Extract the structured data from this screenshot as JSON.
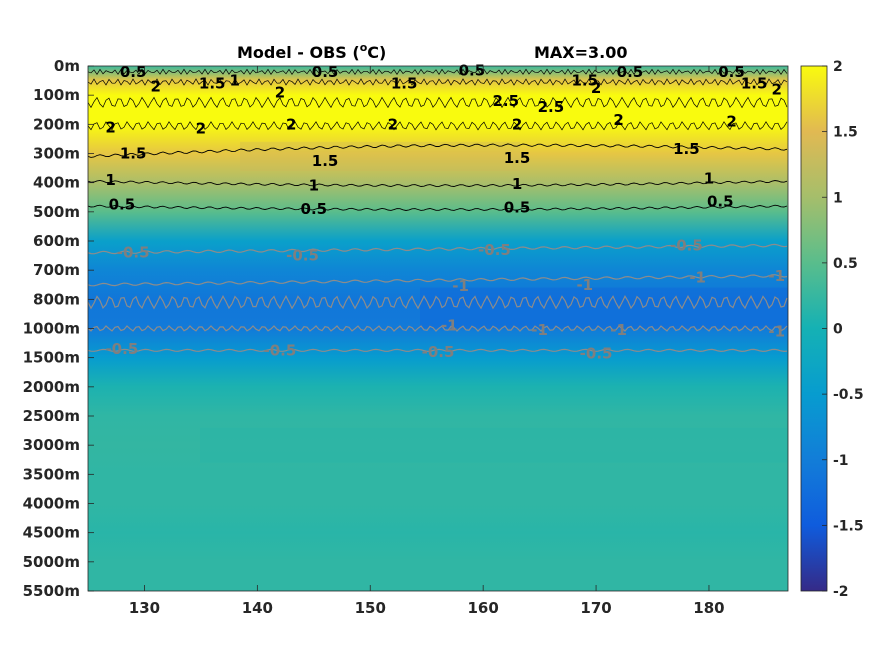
{
  "chart_data": {
    "type": "heatmap",
    "title_left": "Model - OBS (",
    "title_sup": "o",
    "title_unit": "C)",
    "title_right": "MAX=3.00",
    "colormap": "parula",
    "color_limits": [
      -2,
      2
    ],
    "colorbar_ticks": [
      "2",
      "1.5",
      "1",
      "0.5",
      "0",
      "-0.5",
      "-1",
      "-1.5",
      "-2"
    ],
    "x_ticks": [
      "130",
      "140",
      "150",
      "160",
      "170",
      "180"
    ],
    "x_tick_values": [
      130,
      140,
      150,
      160,
      170,
      180
    ],
    "xlim": [
      125,
      187
    ],
    "y_ticks": [
      "0m",
      "100m",
      "200m",
      "300m",
      "400m",
      "500m",
      "600m",
      "700m",
      "800m",
      "1000m",
      "1500m",
      "2000m",
      "2500m",
      "3000m",
      "3500m",
      "4000m",
      "4500m",
      "5000m",
      "5500m"
    ],
    "depth_profile": [
      {
        "depth": "0m",
        "value": 0.3
      },
      {
        "depth": "50m",
        "value": 1.6
      },
      {
        "depth": "100m",
        "value": 2.0
      },
      {
        "depth": "200m",
        "value": 2.0
      },
      {
        "depth": "300m",
        "value": 1.6
      },
      {
        "depth": "400m",
        "value": 1.05
      },
      {
        "depth": "500m",
        "value": 0.5
      },
      {
        "depth": "600m",
        "value": -0.4
      },
      {
        "depth": "700m",
        "value": -0.85
      },
      {
        "depth": "800m",
        "value": -1.1
      },
      {
        "depth": "1000m",
        "value": -1.05
      },
      {
        "depth": "1500m",
        "value": -0.5
      },
      {
        "depth": "2000m",
        "value": 0.05
      },
      {
        "depth": "2500m",
        "value": 0.2
      },
      {
        "depth": "3000m",
        "value": 0.22
      },
      {
        "depth": "3500m",
        "value": 0.2
      },
      {
        "depth": "4000m",
        "value": 0.2
      },
      {
        "depth": "4500m",
        "value": 0.15
      },
      {
        "depth": "5000m",
        "value": 0.2
      },
      {
        "depth": "5500m",
        "value": 0.2
      }
    ],
    "contour_labels": [
      {
        "text": "0.5",
        "x": 129,
        "depth_index": 0.2,
        "color": "#000000"
      },
      {
        "text": "2",
        "x": 131,
        "depth_index": 0.7,
        "color": "#000000"
      },
      {
        "text": "1.5",
        "x": 136,
        "depth_index": 0.6,
        "color": "#000000"
      },
      {
        "text": "1",
        "x": 138,
        "depth_index": 0.5,
        "color": "#000000"
      },
      {
        "text": "0.5",
        "x": 146,
        "depth_index": 0.2,
        "color": "#000000"
      },
      {
        "text": "2",
        "x": 142,
        "depth_index": 0.9,
        "color": "#000000"
      },
      {
        "text": "1.5",
        "x": 153,
        "depth_index": 0.6,
        "color": "#000000"
      },
      {
        "text": "0.5",
        "x": 159,
        "depth_index": 0.15,
        "color": "#000000"
      },
      {
        "text": "1.5",
        "x": 169,
        "depth_index": 0.5,
        "color": "#000000"
      },
      {
        "text": "2",
        "x": 170,
        "depth_index": 0.75,
        "color": "#000000"
      },
      {
        "text": "0.5",
        "x": 173,
        "depth_index": 0.2,
        "color": "#000000"
      },
      {
        "text": "0.5",
        "x": 182,
        "depth_index": 0.2,
        "color": "#000000"
      },
      {
        "text": "1.5",
        "x": 184,
        "depth_index": 0.6,
        "color": "#000000"
      },
      {
        "text": "2",
        "x": 186,
        "depth_index": 0.8,
        "color": "#000000"
      },
      {
        "text": "2.5",
        "x": 162,
        "depth_index": 1.2,
        "color": "#000000"
      },
      {
        "text": "2.5",
        "x": 166,
        "depth_index": 1.4,
        "color": "#000000"
      },
      {
        "text": "2",
        "x": 127,
        "depth_index": 2.1,
        "color": "#000000"
      },
      {
        "text": "2",
        "x": 135,
        "depth_index": 2.15,
        "color": "#000000"
      },
      {
        "text": "2",
        "x": 143,
        "depth_index": 2.0,
        "color": "#000000"
      },
      {
        "text": "2",
        "x": 152,
        "depth_index": 2.0,
        "color": "#000000"
      },
      {
        "text": "2",
        "x": 163,
        "depth_index": 2.0,
        "color": "#000000"
      },
      {
        "text": "2",
        "x": 172,
        "depth_index": 1.85,
        "color": "#000000"
      },
      {
        "text": "2",
        "x": 182,
        "depth_index": 1.9,
        "color": "#000000"
      },
      {
        "text": "1.5",
        "x": 129,
        "depth_index": 3.0,
        "color": "#000000"
      },
      {
        "text": "1.5",
        "x": 146,
        "depth_index": 3.25,
        "color": "#000000"
      },
      {
        "text": "1.5",
        "x": 163,
        "depth_index": 3.15,
        "color": "#000000"
      },
      {
        "text": "1.5",
        "x": 178,
        "depth_index": 2.85,
        "color": "#000000"
      },
      {
        "text": "1",
        "x": 127,
        "depth_index": 3.9,
        "color": "#000000"
      },
      {
        "text": "1",
        "x": 145,
        "depth_index": 4.1,
        "color": "#000000"
      },
      {
        "text": "1",
        "x": 163,
        "depth_index": 4.05,
        "color": "#000000"
      },
      {
        "text": "1",
        "x": 180,
        "depth_index": 3.85,
        "color": "#000000"
      },
      {
        "text": "0.5",
        "x": 128,
        "depth_index": 4.75,
        "color": "#000000"
      },
      {
        "text": "0.5",
        "x": 145,
        "depth_index": 4.9,
        "color": "#000000"
      },
      {
        "text": "0.5",
        "x": 163,
        "depth_index": 4.85,
        "color": "#000000"
      },
      {
        "text": "0.5",
        "x": 181,
        "depth_index": 4.65,
        "color": "#000000"
      },
      {
        "text": "-0.5",
        "x": 129,
        "depth_index": 6.4,
        "color": "#7f7f7f"
      },
      {
        "text": "-0.5",
        "x": 144,
        "depth_index": 6.5,
        "color": "#7f7f7f"
      },
      {
        "text": "-0.5",
        "x": 161,
        "depth_index": 6.3,
        "color": "#7f7f7f"
      },
      {
        "text": "-0.5",
        "x": 178,
        "depth_index": 6.15,
        "color": "#7f7f7f"
      },
      {
        "text": "-1",
        "x": 158,
        "depth_index": 7.55,
        "color": "#7f7f7f"
      },
      {
        "text": "-1",
        "x": 169,
        "depth_index": 7.5,
        "color": "#7f7f7f"
      },
      {
        "text": "-1",
        "x": 179,
        "depth_index": 7.25,
        "color": "#7f7f7f"
      },
      {
        "text": "-1",
        "x": 186,
        "depth_index": 7.2,
        "color": "#7f7f7f"
      },
      {
        "text": "-1",
        "x": 157,
        "depth_index": 8.9,
        "color": "#7f7f7f"
      },
      {
        "text": "-1",
        "x": 165,
        "depth_index": 9.05,
        "color": "#7f7f7f"
      },
      {
        "text": "-1",
        "x": 172,
        "depth_index": 9.05,
        "color": "#7f7f7f"
      },
      {
        "text": "-1",
        "x": 186,
        "depth_index": 9.1,
        "color": "#7f7f7f"
      },
      {
        "text": "-0.5",
        "x": 128,
        "depth_index": 9.7,
        "color": "#7f7f7f"
      },
      {
        "text": "-0.5",
        "x": 142,
        "depth_index": 9.75,
        "color": "#7f7f7f"
      },
      {
        "text": "-0.5",
        "x": 156,
        "depth_index": 9.8,
        "color": "#7f7f7f"
      },
      {
        "text": "-0.5",
        "x": 170,
        "depth_index": 9.85,
        "color": "#7f7f7f"
      }
    ]
  }
}
